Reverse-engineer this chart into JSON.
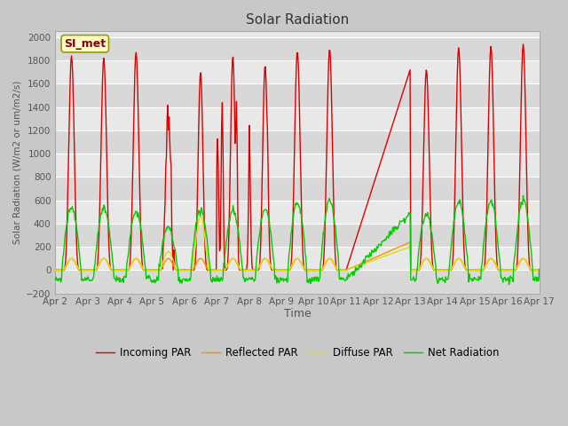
{
  "title": "Solar Radiation",
  "ylabel": "Solar Radiation (W/m2 or um/m2/s)",
  "xlabel": "Time",
  "ylim": [
    -200,
    2050
  ],
  "yticks": [
    -200,
    0,
    200,
    400,
    600,
    800,
    1000,
    1200,
    1400,
    1600,
    1800,
    2000
  ],
  "x_labels": [
    "Apr 2",
    "Apr 3",
    "Apr 4",
    "Apr 5",
    "Apr 6",
    "Apr 7",
    "Apr 8",
    "Apr 9",
    "Apr 10",
    "Apr 11",
    "Apr 12",
    "Apr 13",
    "Apr 14",
    "Apr 15",
    "Apr 16",
    "Apr 17"
  ],
  "colors": {
    "incoming": "#dd0000",
    "reflected": "#ff8c00",
    "diffuse": "#dddd00",
    "net": "#00cc00"
  },
  "fig_bg": "#c8c8c8",
  "plot_bg_light": "#e8e8e8",
  "plot_bg_dark": "#d8d8d8",
  "legend_label": "SI_met",
  "legend_entries": [
    "Incoming PAR",
    "Reflected PAR",
    "Diffuse PAR",
    "Net Radiation"
  ]
}
